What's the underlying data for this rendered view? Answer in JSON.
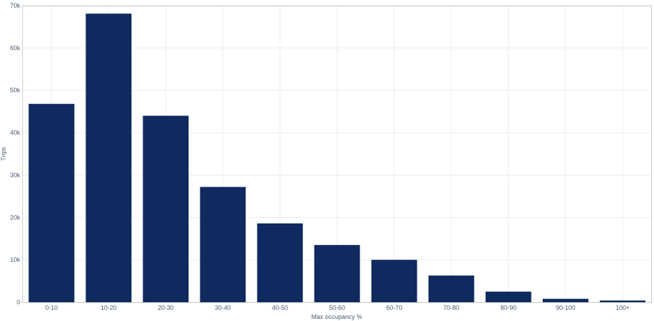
{
  "chart_data": {
    "type": "bar",
    "xlabel": "Max occupancy %",
    "ylabel": "Trips",
    "categories": [
      "0-10",
      "10-20",
      "20-30",
      "30-40",
      "40-50",
      "50-60",
      "60-70",
      "70-80",
      "80-90",
      "90-100",
      "100+"
    ],
    "values": [
      46800,
      68100,
      44000,
      27200,
      18600,
      13500,
      10000,
      6300,
      2500,
      800,
      400
    ],
    "ylim": [
      0,
      70000
    ],
    "yticks": [
      0,
      10000,
      20000,
      30000,
      40000,
      50000,
      60000,
      70000
    ],
    "ytick_labels": [
      "0",
      "10k",
      "20k",
      "30k",
      "40k",
      "50k",
      "60k",
      "70k"
    ],
    "bar_color": "#0f2a5f",
    "grid": true,
    "legend": "none"
  }
}
